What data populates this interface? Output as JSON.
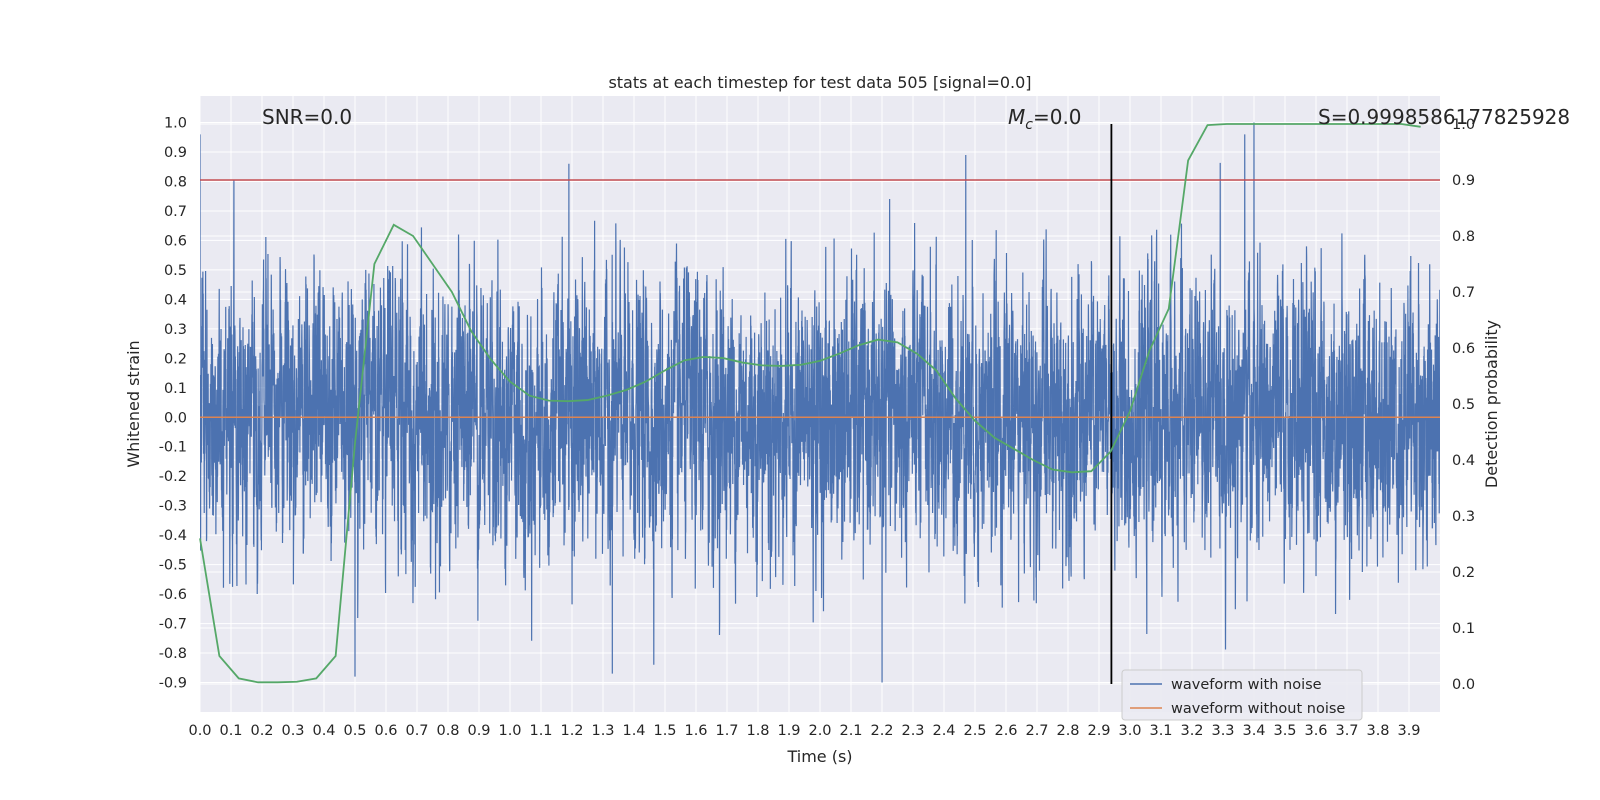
{
  "chart_data": {
    "type": "line",
    "title": "stats at each timestep for test data 505 [signal=0.0]",
    "xlabel": "Time (s)",
    "ylabel": "Whitened strain",
    "y2label": "Detection probability",
    "xlim": [
      0.0,
      4.0
    ],
    "ylim": [
      -1.0,
      1.09
    ],
    "y2lim": [
      -0.05,
      1.05
    ],
    "x_ticks": [
      0.0,
      0.1,
      0.2,
      0.3,
      0.4,
      0.5,
      0.6,
      0.7,
      0.8,
      0.9,
      1.0,
      1.1,
      1.2,
      1.3,
      1.4,
      1.5,
      1.6,
      1.7,
      1.8,
      1.9,
      2.0,
      2.1,
      2.2,
      2.3,
      2.4,
      2.5,
      2.6,
      2.7,
      2.8,
      2.9,
      3.0,
      3.1,
      3.2,
      3.3,
      3.4,
      3.5,
      3.6,
      3.7,
      3.8,
      3.9
    ],
    "x_tick_labels": [
      "0.0",
      "0.1",
      "0.2",
      "0.3",
      "0.4",
      "0.5",
      "0.6",
      "0.7",
      "0.8",
      "0.9",
      "1.0",
      "1.1",
      "1.2",
      "1.3",
      "1.4",
      "1.5",
      "1.6",
      "1.7",
      "1.8",
      "1.9",
      "2.0",
      "2.1",
      "2.2",
      "2.3",
      "2.4",
      "2.5",
      "2.6",
      "2.7",
      "2.8",
      "2.9",
      "3.0",
      "3.1",
      "3.2",
      "3.3",
      "3.4",
      "3.5",
      "3.6",
      "3.7",
      "3.8",
      "3.9"
    ],
    "y_ticks": [
      1.0,
      0.9,
      0.8,
      0.7,
      0.6,
      0.5,
      0.4,
      0.3,
      0.2,
      0.1,
      0.0,
      -0.1,
      -0.2,
      -0.3,
      -0.4,
      -0.5,
      -0.6,
      -0.7,
      -0.8,
      -0.9
    ],
    "y_tick_labels": [
      "1.0",
      "0.9",
      "0.8",
      "0.7",
      "0.6",
      "0.5",
      "0.4",
      "0.3",
      "0.2",
      "0.1",
      "0.0",
      "-0.1",
      "-0.2",
      "-0.3",
      "-0.4",
      "-0.5",
      "-0.6",
      "-0.7",
      "-0.8",
      "-0.9"
    ],
    "y2_ticks": [
      1.0,
      0.9,
      0.8,
      0.7,
      0.6,
      0.5,
      0.4,
      0.3,
      0.2,
      0.1,
      0.0
    ],
    "y2_tick_labels": [
      "1.0",
      "0.9",
      "0.8",
      "0.7",
      "0.6",
      "0.5",
      "0.4",
      "0.3",
      "0.2",
      "0.1",
      "0.0"
    ],
    "grid": true,
    "legend_position": "lower-right",
    "series": [
      {
        "name": "waveform with noise",
        "axis": "left",
        "color": "#4c72b0",
        "style": "dense noise",
        "sample_rate": 2048,
        "approx_std": 0.22,
        "max": 1.0,
        "min": -0.9,
        "peaks": [
          {
            "x": 0.0,
            "y": 0.96
          },
          {
            "x": 1.19,
            "y": 0.86
          },
          {
            "x": 2.47,
            "y": 0.89
          },
          {
            "x": 3.37,
            "y": 0.96
          },
          {
            "x": 3.4,
            "y": 1.0
          },
          {
            "x": 2.2,
            "y": -0.9
          },
          {
            "x": 0.5,
            "y": -0.88
          },
          {
            "x": 1.33,
            "y": -0.87
          }
        ]
      },
      {
        "name": "waveform without noise",
        "axis": "left",
        "color": "#dd8452",
        "x": [
          0.0,
          4.0
        ],
        "values": [
          0.0,
          0.0
        ]
      },
      {
        "axis": "right",
        "color": "#55a868",
        "x": [
          0.0,
          0.0625,
          0.125,
          0.1875,
          0.25,
          0.3125,
          0.375,
          0.4375,
          0.5,
          0.5625,
          0.625,
          0.6875,
          0.75,
          0.8125,
          0.875,
          0.9375,
          1.0,
          1.0625,
          1.125,
          1.1875,
          1.25,
          1.3125,
          1.375,
          1.4375,
          1.5,
          1.5625,
          1.625,
          1.6875,
          1.75,
          1.8125,
          1.875,
          1.9375,
          2.0,
          2.0625,
          2.125,
          2.1875,
          2.25,
          2.3125,
          2.375,
          2.4375,
          2.5,
          2.5625,
          2.625,
          2.6875,
          2.75,
          2.8125,
          2.875,
          2.9375,
          3.0,
          3.0625,
          3.125,
          3.1875,
          3.25,
          3.3125,
          3.375,
          3.4375,
          3.5,
          3.5625,
          3.625,
          3.6875,
          3.75,
          3.8125,
          3.875,
          3.9375
        ],
        "values": [
          0.26,
          0.05,
          0.01,
          0.003,
          0.003,
          0.004,
          0.01,
          0.05,
          0.43,
          0.75,
          0.82,
          0.8,
          0.75,
          0.7,
          0.63,
          0.58,
          0.54,
          0.515,
          0.506,
          0.505,
          0.507,
          0.515,
          0.525,
          0.54,
          0.56,
          0.578,
          0.584,
          0.582,
          0.574,
          0.569,
          0.568,
          0.57,
          0.577,
          0.59,
          0.605,
          0.615,
          0.61,
          0.59,
          0.56,
          0.51,
          0.47,
          0.44,
          0.42,
          0.4,
          0.383,
          0.378,
          0.38,
          0.415,
          0.487,
          0.595,
          0.67,
          0.935,
          0.998,
          1.0,
          1.0,
          1.0,
          1.0,
          1.0,
          1.0,
          1.0,
          1.0,
          1.0,
          1.0,
          0.995
        ]
      }
    ],
    "reference_lines": [
      {
        "orientation": "horizontal",
        "axis": "right",
        "value": 0.9,
        "color": "#c44e52"
      },
      {
        "orientation": "vertical",
        "value": 2.94,
        "color": "#000000",
        "y2_range": [
          0.0,
          1.0
        ]
      }
    ],
    "annotations": [
      {
        "label": "SNR=0.0"
      },
      {
        "label_symbol": "M",
        "label_sub": "c",
        "label_value": "=0.0"
      },
      {
        "label": "S=0.9998586177825928"
      }
    ]
  }
}
